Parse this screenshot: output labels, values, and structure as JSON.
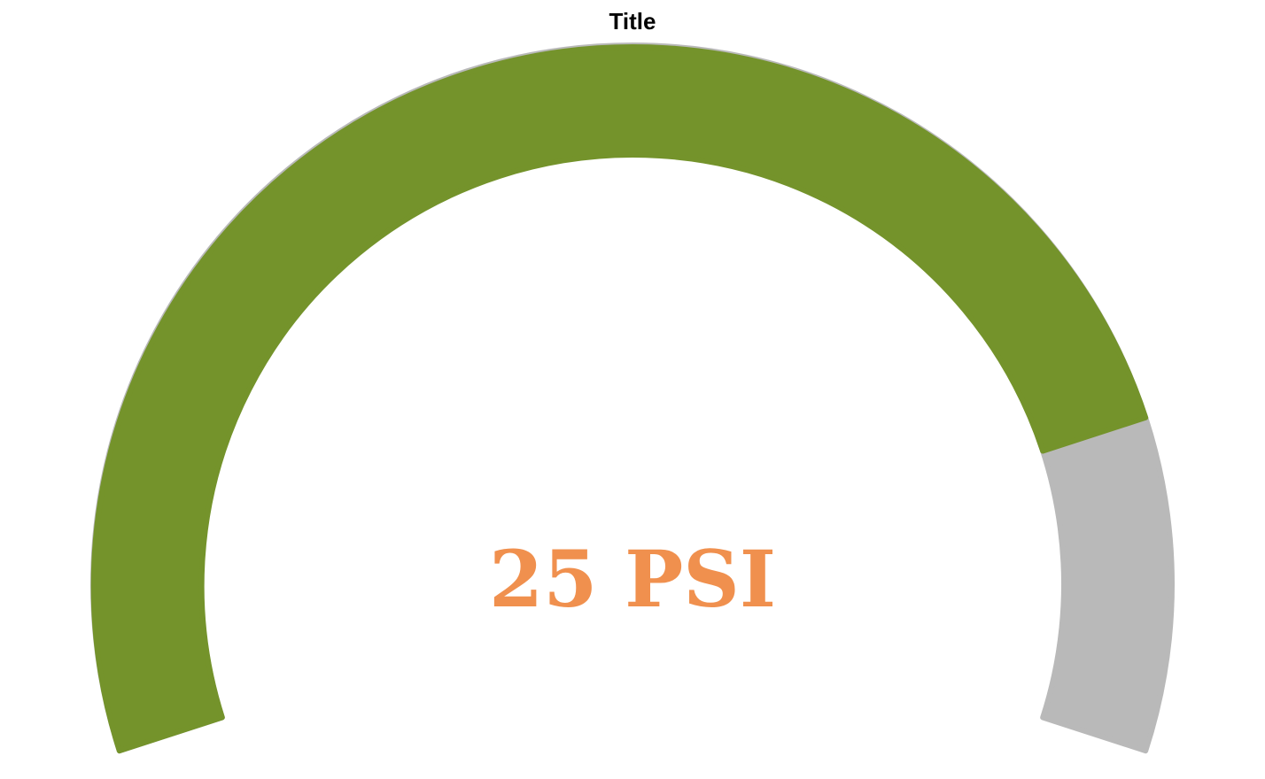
{
  "chart_data": {
    "type": "gauge",
    "title": "Title",
    "value": 25,
    "unit": "PSI",
    "min": 0,
    "max": 30,
    "value_color": "#f0904e",
    "fill_color": "#74932b",
    "track_color": "#b9b9b9"
  }
}
